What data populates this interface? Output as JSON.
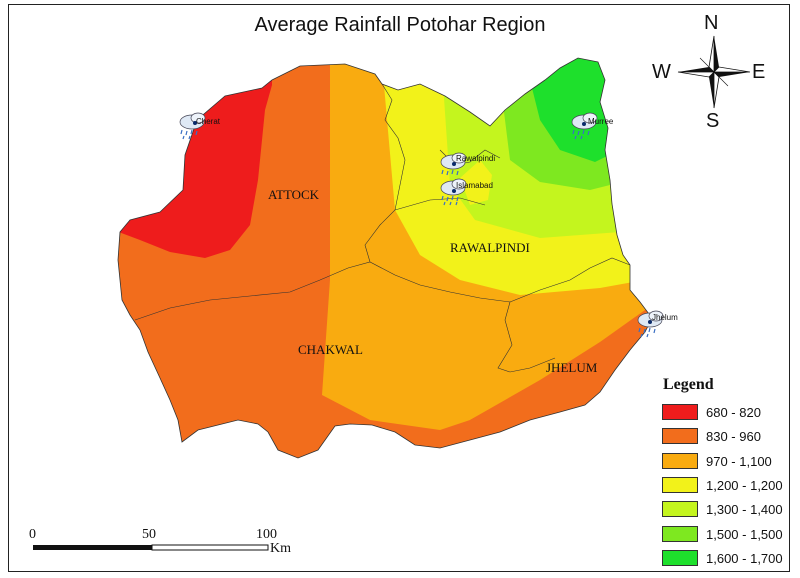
{
  "title": "Average Rainfall Potohar Region",
  "districts": [
    "ATTOCK",
    "RAWALPINDI",
    "CHAKWAL",
    "JHELUM"
  ],
  "stations": [
    "Cherat",
    "Murree",
    "Rawalpindi",
    "Islamabad",
    "Jhelum"
  ],
  "legend": {
    "title": "Legend",
    "items": [
      {
        "label": "680 - 820",
        "color": "#ee1c1c"
      },
      {
        "label": "830 - 960",
        "color": "#f26d1c"
      },
      {
        "label": "970 - 1,100",
        "color": "#f9ab10"
      },
      {
        "label": "1,200 - 1,200",
        "color": "#f2f21a"
      },
      {
        "label": "1,300 - 1,400",
        "color": "#c4f51e"
      },
      {
        "label": "1,500 - 1,500",
        "color": "#7ee820"
      },
      {
        "label": "1,600 - 1,700",
        "color": "#1ee02c"
      }
    ]
  },
  "compass": {
    "n": "N",
    "s": "S",
    "e": "E",
    "w": "W"
  },
  "scale": {
    "ticks": [
      "0",
      "50",
      "100"
    ],
    "unit": "Km"
  }
}
